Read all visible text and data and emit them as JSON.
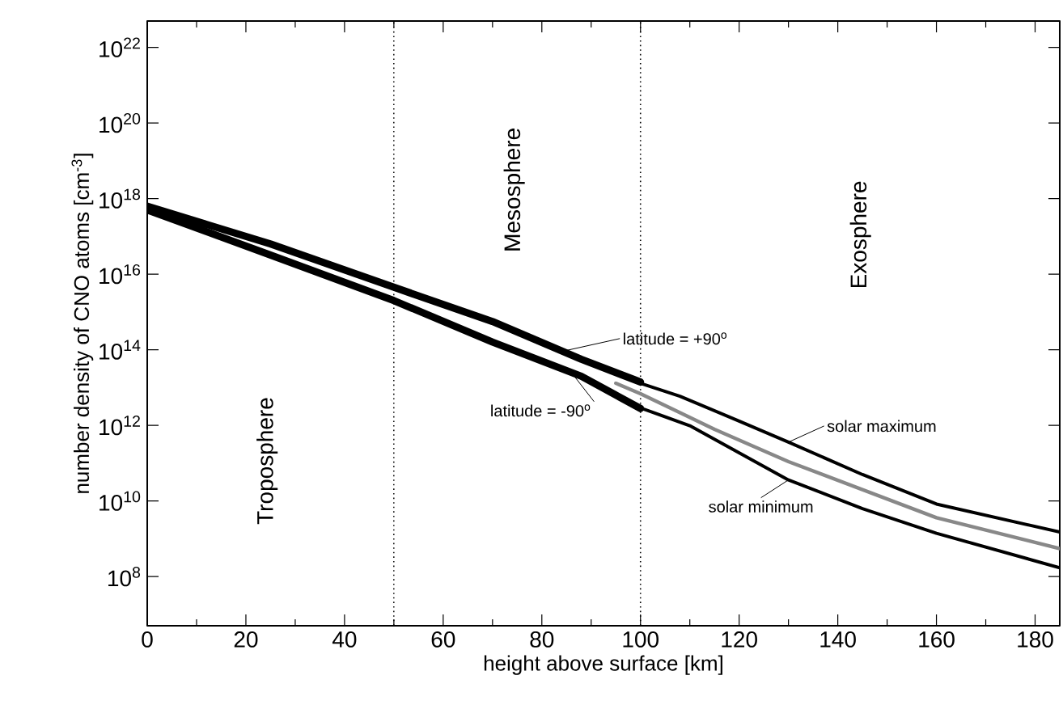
{
  "chart_data": {
    "type": "line",
    "xlabel": "height above surface  [km]",
    "ylabel": "number density of CNO atoms  [cm$^{-3}$]",
    "log": "y",
    "xlim": [
      0,
      185
    ],
    "ylim": [
      5000000.0,
      5e+22
    ],
    "xticks": [
      0,
      20,
      40,
      60,
      80,
      100,
      120,
      140,
      160,
      180
    ],
    "yticks": [
      {
        "value": 100000000.0,
        "label": "10$^{8}$"
      },
      {
        "value": 10000000000.0,
        "label": "10$^{10}$"
      },
      {
        "value": 1000000000000.0,
        "label": "10$^{12}$"
      },
      {
        "value": 100000000000000.0,
        "label": "10$^{14}$"
      },
      {
        "value": 1e+16,
        "label": "10$^{16}$"
      },
      {
        "value": 1e+18,
        "label": "10$^{18}$"
      },
      {
        "value": 1e+20,
        "label": "10$^{20}$"
      },
      {
        "value": 1e+22,
        "label": "10$^{22}$"
      }
    ],
    "line_style": "solid",
    "ref_lines": [
      {
        "axis": "x",
        "value": 50,
        "line_style": "dotted",
        "color": "#000000"
      },
      {
        "axis": "x",
        "value": 100,
        "line_style": "dotted",
        "color": "#000000"
      }
    ],
    "annotations": [
      "Troposphere",
      "Mesosphere",
      "Exosphere",
      {
        "text": "latitude = +90$^{o}$",
        "x": 84,
        "y": 90000000000000.0
      },
      {
        "text": "latitude = -90$^{o}$",
        "x": 86,
        "y": 25000000000000.0
      },
      {
        "text": "solar maximum",
        "x": 130,
        "y": 360000000000.0
      },
      {
        "text": "solar minimum",
        "x": 130,
        "y": 36000000000.0
      }
    ],
    "series": [
      {
        "color": "#000000",
        "x": [
          0,
          25,
          50,
          70,
          88,
          100
        ],
        "values": [
          6.3e+17,
          6.3e+16,
          4500000000000000.0,
          560000000000000.0,
          56000000000000.0,
          14000000000000.0
        ]
      },
      {
        "color": "#000000",
        "x": [
          0,
          25,
          50,
          70,
          88,
          100
        ],
        "values": [
          5e+17,
          3.2e+16,
          2000000000000000.0,
          160000000000000.0,
          20000000000000.0,
          2800000000000.0
        ]
      },
      {
        "color": "#000000",
        "x": [
          100,
          108,
          120,
          130,
          145,
          160,
          185
        ],
        "values": [
          13000000000000.0,
          5900000000000.0,
          1300000000000.0,
          360000000000.0,
          50000000000.0,
          8300000000.0,
          1500000000.0
        ]
      },
      {
        "color": "#000000",
        "x": [
          100,
          110,
          130,
          145,
          160,
          185
        ],
        "values": [
          2900000000000.0,
          980000000000.0,
          36000000000.0,
          6300000000.0,
          1400000000.0,
          170000000.0
        ]
      },
      {
        "color": "#888888",
        "x": [
          95,
          100,
          115,
          130,
          160,
          185
        ],
        "values": [
          13000000000000.0,
          6900000000000.0,
          790000000000.0,
          110000000000.0,
          3600000000.0,
          550000000.0
        ]
      }
    ]
  }
}
